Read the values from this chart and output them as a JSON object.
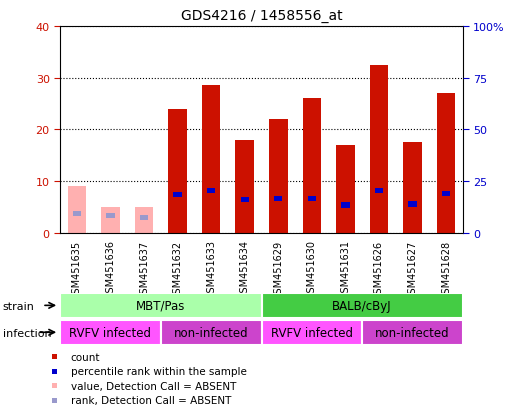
{
  "title": "GDS4216 / 1458556_at",
  "samples": [
    "GSM451635",
    "GSM451636",
    "GSM451637",
    "GSM451632",
    "GSM451633",
    "GSM451634",
    "GSM451629",
    "GSM451630",
    "GSM451631",
    "GSM451626",
    "GSM451627",
    "GSM451628"
  ],
  "count_values": [
    9,
    5,
    5,
    24,
    28.5,
    18,
    22,
    26,
    17,
    32.5,
    17.5,
    27
  ],
  "rank_values": [
    9.5,
    8.5,
    7.5,
    18.5,
    20.5,
    16,
    16.5,
    16.5,
    13.5,
    20.5,
    14,
    19
  ],
  "absent_flags": [
    true,
    true,
    true,
    false,
    false,
    false,
    false,
    false,
    false,
    false,
    false,
    false
  ],
  "strain_groups": [
    {
      "label": "MBT/Pas",
      "start": 0,
      "end": 6,
      "color": "#aaffaa"
    },
    {
      "label": "BALB/cByJ",
      "start": 6,
      "end": 12,
      "color": "#44cc44"
    }
  ],
  "infection_groups": [
    {
      "label": "RVFV infected",
      "start": 0,
      "end": 3,
      "color": "#ff55ff"
    },
    {
      "label": "non-infected",
      "start": 3,
      "end": 6,
      "color": "#cc44cc"
    },
    {
      "label": "RVFV infected",
      "start": 6,
      "end": 9,
      "color": "#ff55ff"
    },
    {
      "label": "non-infected",
      "start": 9,
      "end": 12,
      "color": "#cc44cc"
    }
  ],
  "ylim_left": [
    0,
    40
  ],
  "ylim_right": [
    0,
    100
  ],
  "yticks_left": [
    0,
    10,
    20,
    30,
    40
  ],
  "yticks_right": [
    0,
    25,
    50,
    75,
    100
  ],
  "bar_color_present": "#cc1100",
  "bar_color_absent": "#ffb0b0",
  "rank_color_present": "#0000cc",
  "rank_color_absent": "#9999cc",
  "left_tick_color": "#cc1100",
  "right_tick_color": "#0000cc",
  "legend_items": [
    {
      "label": "count",
      "color": "#cc1100"
    },
    {
      "label": "percentile rank within the sample",
      "color": "#0000cc"
    },
    {
      "label": "value, Detection Call = ABSENT",
      "color": "#ffb0b0"
    },
    {
      "label": "rank, Detection Call = ABSENT",
      "color": "#9999cc"
    }
  ]
}
